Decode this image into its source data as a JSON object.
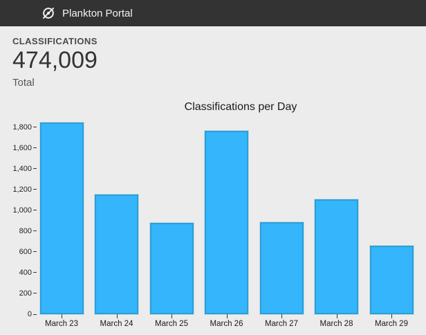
{
  "header": {
    "title": "Plankton Portal",
    "logo_icon": "zooniverse-circle-slash",
    "background": "#333333"
  },
  "stats": {
    "label": "CLASSIFICATIONS",
    "value": "474,009",
    "sublabel": "Total"
  },
  "chart_data": {
    "type": "bar",
    "title": "Classifications per Day",
    "categories": [
      "March 23",
      "March 24",
      "March 25",
      "March 26",
      "March 27",
      "March 28",
      "March 29"
    ],
    "values": [
      1845,
      1155,
      880,
      1765,
      885,
      1105,
      660
    ],
    "xlabel": "",
    "ylabel": "",
    "ylim": [
      0,
      1845
    ],
    "ytick_interval": 200,
    "ytick_labels": [
      "0",
      "200",
      "400",
      "600",
      "800",
      "1,000",
      "1,200",
      "1,400",
      "1,600",
      "1,800"
    ],
    "grid": false,
    "legend": false,
    "bar_color": "#35b5fb",
    "bar_border_color": "#2a9fd8",
    "background_color": "#ececec"
  }
}
